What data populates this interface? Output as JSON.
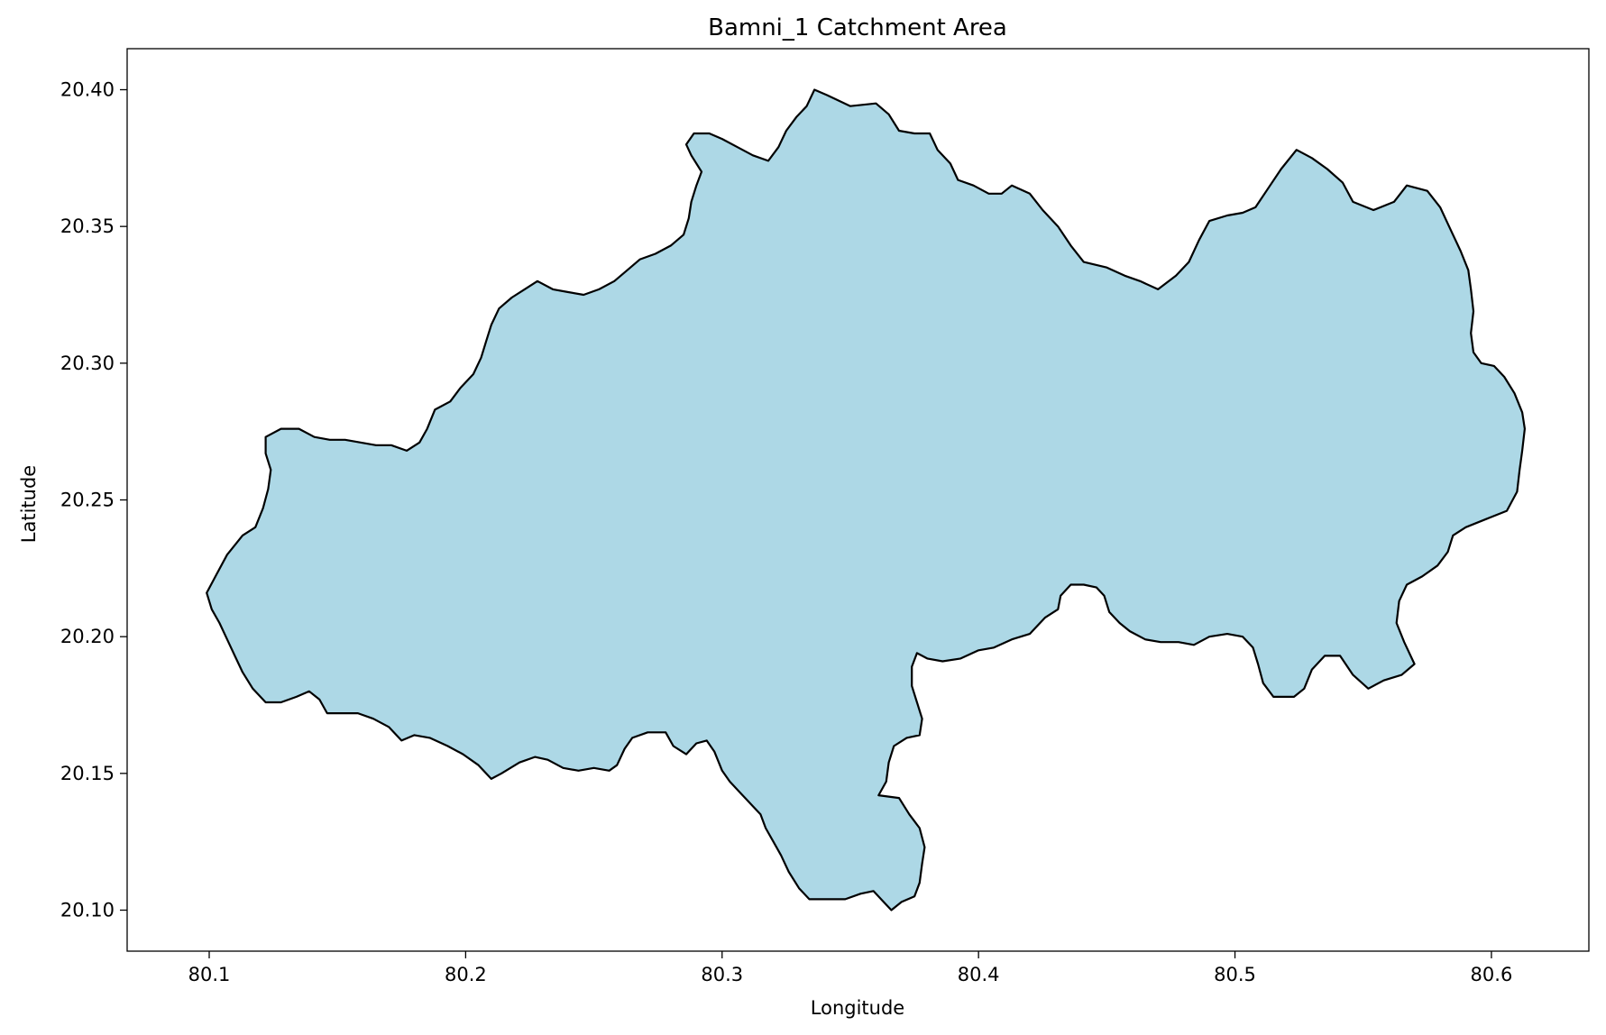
{
  "chart_data": {
    "type": "map",
    "title": "Bamni_1 Catchment Area",
    "xlabel": "Longitude",
    "ylabel": "Latitude",
    "xlim": [
      80.068,
      80.638
    ],
    "ylim": [
      20.085,
      20.415
    ],
    "x_ticks": [
      80.1,
      80.2,
      80.3,
      80.4,
      80.5,
      80.6
    ],
    "x_tick_labels": [
      "80.1",
      "80.2",
      "80.3",
      "80.4",
      "80.5",
      "80.6"
    ],
    "y_ticks": [
      20.1,
      20.15,
      20.2,
      20.25,
      20.3,
      20.35,
      20.4
    ],
    "y_tick_labels": [
      "20.10",
      "20.15",
      "20.20",
      "20.25",
      "20.30",
      "20.35",
      "20.40"
    ],
    "grid": false,
    "legend": "none",
    "region": {
      "fill_color": "#add8e6",
      "edge_color": "#000000",
      "boundary": [
        [
          80.336,
          20.4
        ],
        [
          80.341,
          20.398
        ],
        [
          80.35,
          20.394
        ],
        [
          80.36,
          20.395
        ],
        [
          80.365,
          20.391
        ],
        [
          80.369,
          20.385
        ],
        [
          80.375,
          20.384
        ],
        [
          80.381,
          20.384
        ],
        [
          80.384,
          20.378
        ],
        [
          80.389,
          20.373
        ],
        [
          80.392,
          20.367
        ],
        [
          80.398,
          20.365
        ],
        [
          80.404,
          20.362
        ],
        [
          80.409,
          20.362
        ],
        [
          80.413,
          20.365
        ],
        [
          80.42,
          20.362
        ],
        [
          80.425,
          20.356
        ],
        [
          80.431,
          20.35
        ],
        [
          80.436,
          20.343
        ],
        [
          80.441,
          20.337
        ],
        [
          80.45,
          20.335
        ],
        [
          80.457,
          20.332
        ],
        [
          80.463,
          20.33
        ],
        [
          80.47,
          20.327
        ],
        [
          80.477,
          20.332
        ],
        [
          80.482,
          20.337
        ],
        [
          80.486,
          20.345
        ],
        [
          80.49,
          20.352
        ],
        [
          80.497,
          20.354
        ],
        [
          80.503,
          20.355
        ],
        [
          80.508,
          20.357
        ],
        [
          80.513,
          20.364
        ],
        [
          80.518,
          20.371
        ],
        [
          80.524,
          20.378
        ],
        [
          80.53,
          20.375
        ],
        [
          80.536,
          20.371
        ],
        [
          80.542,
          20.366
        ],
        [
          80.546,
          20.359
        ],
        [
          80.554,
          20.356
        ],
        [
          80.562,
          20.359
        ],
        [
          80.567,
          20.365
        ],
        [
          80.575,
          20.363
        ],
        [
          80.58,
          20.357
        ],
        [
          80.584,
          20.349
        ],
        [
          80.588,
          20.341
        ],
        [
          80.591,
          20.334
        ],
        [
          80.592,
          20.327
        ],
        [
          80.593,
          20.319
        ],
        [
          80.592,
          20.311
        ],
        [
          80.593,
          20.304
        ],
        [
          80.596,
          20.3
        ],
        [
          80.601,
          20.299
        ],
        [
          80.605,
          20.295
        ],
        [
          80.609,
          20.289
        ],
        [
          80.612,
          20.282
        ],
        [
          80.613,
          20.276
        ],
        [
          80.612,
          20.268
        ],
        [
          80.611,
          20.261
        ],
        [
          80.61,
          20.253
        ],
        [
          80.606,
          20.246
        ],
        [
          80.598,
          20.243
        ],
        [
          80.59,
          20.24
        ],
        [
          80.585,
          20.237
        ],
        [
          80.583,
          20.231
        ],
        [
          80.579,
          20.226
        ],
        [
          80.573,
          20.222
        ],
        [
          80.567,
          20.219
        ],
        [
          80.564,
          20.213
        ],
        [
          80.563,
          20.205
        ],
        [
          80.566,
          20.198
        ],
        [
          80.57,
          20.19
        ],
        [
          80.565,
          20.186
        ],
        [
          80.558,
          20.184
        ],
        [
          80.552,
          20.181
        ],
        [
          80.546,
          20.186
        ],
        [
          80.541,
          20.193
        ],
        [
          80.535,
          20.193
        ],
        [
          80.53,
          20.188
        ],
        [
          80.527,
          20.181
        ],
        [
          80.523,
          20.178
        ],
        [
          80.515,
          20.178
        ],
        [
          80.511,
          20.183
        ],
        [
          80.509,
          20.19
        ],
        [
          80.507,
          20.196
        ],
        [
          80.503,
          20.2
        ],
        [
          80.497,
          20.201
        ],
        [
          80.49,
          20.2
        ],
        [
          80.484,
          20.197
        ],
        [
          80.478,
          20.198
        ],
        [
          80.471,
          20.198
        ],
        [
          80.465,
          20.199
        ],
        [
          80.459,
          20.202
        ],
        [
          80.455,
          20.205
        ],
        [
          80.451,
          20.209
        ],
        [
          80.449,
          20.215
        ],
        [
          80.446,
          20.218
        ],
        [
          80.441,
          20.219
        ],
        [
          80.436,
          20.219
        ],
        [
          80.432,
          20.215
        ],
        [
          80.431,
          20.21
        ],
        [
          80.426,
          20.207
        ],
        [
          80.42,
          20.201
        ],
        [
          80.413,
          20.199
        ],
        [
          80.406,
          20.196
        ],
        [
          80.4,
          20.195
        ],
        [
          80.393,
          20.192
        ],
        [
          80.386,
          20.191
        ],
        [
          80.38,
          20.192
        ],
        [
          80.376,
          20.194
        ],
        [
          80.374,
          20.189
        ],
        [
          80.374,
          20.182
        ],
        [
          80.376,
          20.176
        ],
        [
          80.378,
          20.17
        ],
        [
          80.377,
          20.164
        ],
        [
          80.372,
          20.163
        ],
        [
          80.367,
          20.16
        ],
        [
          80.365,
          20.154
        ],
        [
          80.364,
          20.147
        ],
        [
          80.361,
          20.142
        ],
        [
          80.369,
          20.141
        ],
        [
          80.373,
          20.135
        ],
        [
          80.377,
          20.13
        ],
        [
          80.379,
          20.123
        ],
        [
          80.378,
          20.117
        ],
        [
          80.377,
          20.11
        ],
        [
          80.375,
          20.105
        ],
        [
          80.37,
          20.103
        ],
        [
          80.366,
          20.1
        ],
        [
          80.363,
          20.103
        ],
        [
          80.359,
          20.107
        ],
        [
          80.354,
          20.106
        ],
        [
          80.348,
          20.104
        ],
        [
          80.341,
          20.104
        ],
        [
          80.334,
          20.104
        ],
        [
          80.33,
          20.108
        ],
        [
          80.326,
          20.114
        ],
        [
          80.323,
          20.12
        ],
        [
          80.32,
          20.125
        ],
        [
          80.317,
          20.13
        ],
        [
          80.315,
          20.135
        ],
        [
          80.312,
          20.138
        ],
        [
          80.307,
          20.143
        ],
        [
          80.303,
          20.147
        ],
        [
          80.3,
          20.151
        ],
        [
          80.297,
          20.158
        ],
        [
          80.294,
          20.162
        ],
        [
          80.29,
          20.161
        ],
        [
          80.286,
          20.157
        ],
        [
          80.281,
          20.16
        ],
        [
          80.278,
          20.165
        ],
        [
          80.271,
          20.165
        ],
        [
          80.265,
          20.163
        ],
        [
          80.262,
          20.159
        ],
        [
          80.259,
          20.153
        ],
        [
          80.256,
          20.151
        ],
        [
          80.25,
          20.152
        ],
        [
          80.244,
          20.151
        ],
        [
          80.238,
          20.152
        ],
        [
          80.232,
          20.155
        ],
        [
          80.227,
          20.156
        ],
        [
          80.221,
          20.154
        ],
        [
          80.214,
          20.15
        ],
        [
          80.21,
          20.148
        ],
        [
          80.205,
          20.153
        ],
        [
          80.199,
          20.157
        ],
        [
          80.193,
          20.16
        ],
        [
          80.186,
          20.163
        ],
        [
          80.18,
          20.164
        ],
        [
          80.175,
          20.162
        ],
        [
          80.17,
          20.167
        ],
        [
          80.164,
          20.17
        ],
        [
          80.158,
          20.172
        ],
        [
          80.152,
          20.172
        ],
        [
          80.146,
          20.172
        ],
        [
          80.143,
          20.177
        ],
        [
          80.139,
          20.18
        ],
        [
          80.134,
          20.178
        ],
        [
          80.128,
          20.176
        ],
        [
          80.122,
          20.176
        ],
        [
          80.117,
          20.181
        ],
        [
          80.113,
          20.187
        ],
        [
          80.11,
          20.193
        ],
        [
          80.107,
          20.199
        ],
        [
          80.104,
          20.205
        ],
        [
          80.101,
          20.21
        ],
        [
          80.099,
          20.216
        ],
        [
          80.103,
          20.223
        ],
        [
          80.107,
          20.23
        ],
        [
          80.113,
          20.237
        ],
        [
          80.118,
          20.24
        ],
        [
          80.121,
          20.247
        ],
        [
          80.123,
          20.254
        ],
        [
          80.124,
          20.261
        ],
        [
          80.122,
          20.267
        ],
        [
          80.122,
          20.273
        ],
        [
          80.128,
          20.276
        ],
        [
          80.135,
          20.276
        ],
        [
          80.141,
          20.273
        ],
        [
          80.147,
          20.272
        ],
        [
          80.153,
          20.272
        ],
        [
          80.159,
          20.271
        ],
        [
          80.165,
          20.27
        ],
        [
          80.171,
          20.27
        ],
        [
          80.177,
          20.268
        ],
        [
          80.182,
          20.271
        ],
        [
          80.185,
          20.276
        ],
        [
          80.188,
          20.283
        ],
        [
          80.194,
          20.286
        ],
        [
          80.198,
          20.291
        ],
        [
          80.203,
          20.296
        ],
        [
          80.206,
          20.302
        ],
        [
          80.208,
          20.308
        ],
        [
          80.21,
          20.314
        ],
        [
          80.213,
          20.32
        ],
        [
          80.218,
          20.324
        ],
        [
          80.223,
          20.327
        ],
        [
          80.228,
          20.33
        ],
        [
          80.234,
          20.327
        ],
        [
          80.24,
          20.326
        ],
        [
          80.246,
          20.325
        ],
        [
          80.252,
          20.327
        ],
        [
          80.258,
          20.33
        ],
        [
          80.263,
          20.334
        ],
        [
          80.268,
          20.338
        ],
        [
          80.274,
          20.34
        ],
        [
          80.28,
          20.343
        ],
        [
          80.285,
          20.347
        ],
        [
          80.287,
          20.353
        ],
        [
          80.288,
          20.359
        ],
        [
          80.29,
          20.365
        ],
        [
          80.292,
          20.37
        ],
        [
          80.288,
          20.376
        ],
        [
          80.286,
          20.38
        ],
        [
          80.289,
          20.384
        ],
        [
          80.295,
          20.384
        ],
        [
          80.3,
          20.382
        ],
        [
          80.306,
          20.379
        ],
        [
          80.312,
          20.376
        ],
        [
          80.318,
          20.374
        ],
        [
          80.322,
          20.379
        ],
        [
          80.325,
          20.385
        ],
        [
          80.329,
          20.39
        ],
        [
          80.333,
          20.394
        ]
      ]
    }
  }
}
